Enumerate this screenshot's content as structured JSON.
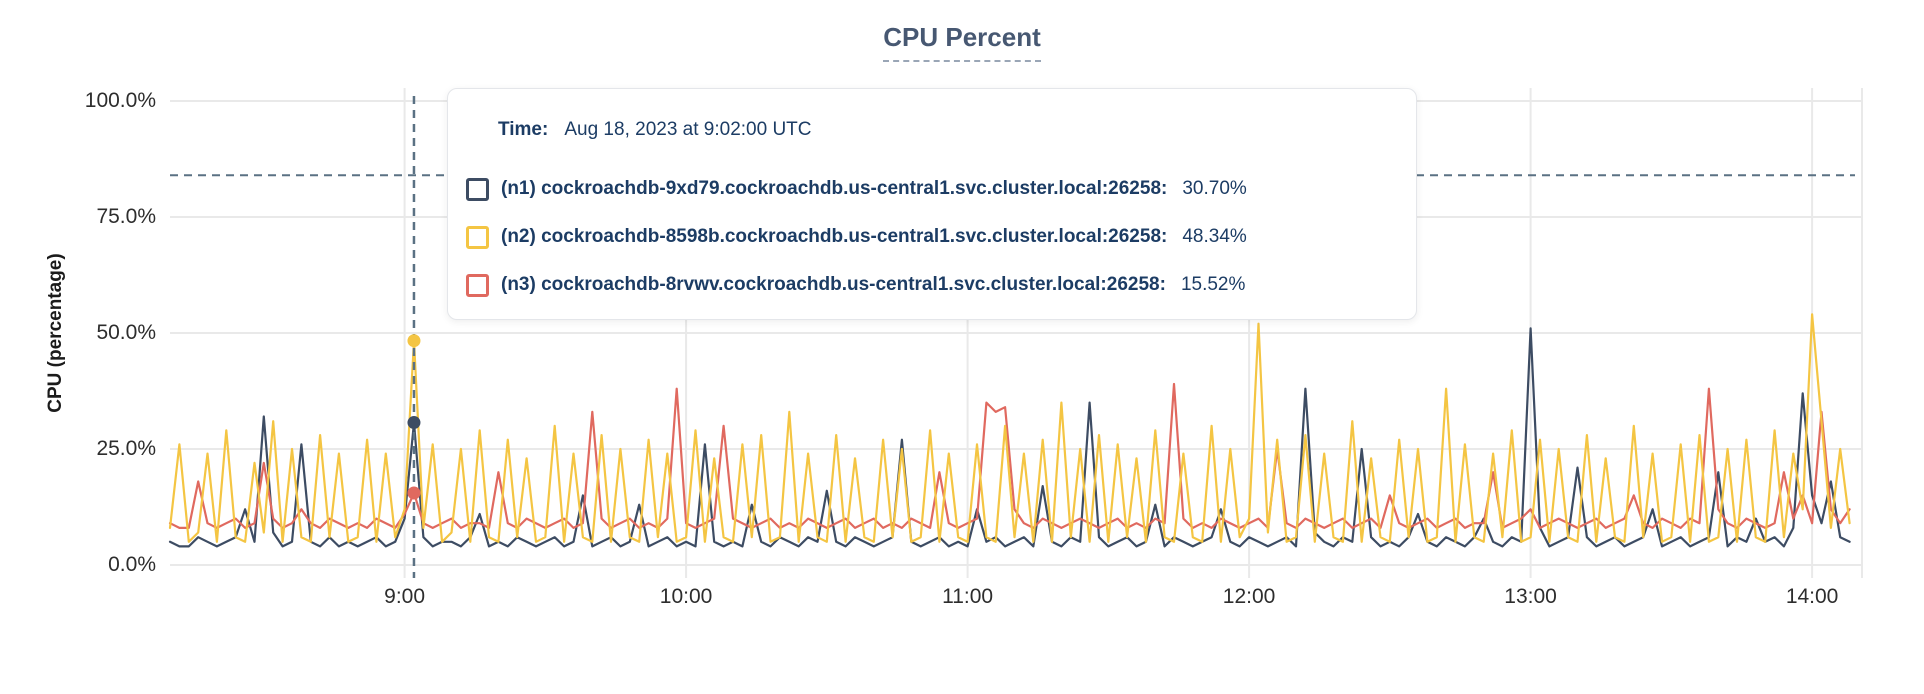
{
  "header": {
    "title": "CPU Percent"
  },
  "tooltip": {
    "time_label": "Time:",
    "time_value": "Aug 18, 2023 at 9:02:00 UTC",
    "rows": [
      {
        "series_id": "n1",
        "swatch_color": "#3d4c63",
        "name": "(n1) cockroachdb-9xd79.cockroachdb.us-central1.svc.cluster.local:26258:",
        "value": "30.70%"
      },
      {
        "series_id": "n2",
        "swatch_color": "#f4c543",
        "name": "(n2) cockroachdb-8598b.cockroachdb.us-central1.svc.cluster.local:26258:",
        "value": "48.34%"
      },
      {
        "series_id": "n3",
        "swatch_color": "#e0695f",
        "name": "(n3) cockroachdb-8rvwv.cockroachdb.us-central1.svc.cluster.local:26258:",
        "value": "15.52%"
      }
    ]
  },
  "chart_data": {
    "type": "line",
    "title": "CPU Percent",
    "xlabel": "",
    "ylabel": "CPU (percentage)",
    "ylim": [
      0,
      100
    ],
    "grid": true,
    "x_start_label": "8:10 UTC",
    "x_end_label": "14:09 UTC",
    "x_step_minutes": 2,
    "y_ticks": [
      {
        "label": "100.0%",
        "v": 100
      },
      {
        "label": "75.0%",
        "v": 75
      },
      {
        "label": "50.0%",
        "v": 50
      },
      {
        "label": "25.0%",
        "v": 25
      },
      {
        "label": "0.0%",
        "v": 0
      }
    ],
    "x_ticks": [
      {
        "label": "9:00",
        "t": 50
      },
      {
        "label": "10:00",
        "t": 110
      },
      {
        "label": "11:00",
        "t": 170
      },
      {
        "label": "12:00",
        "t": 230
      },
      {
        "label": "13:00",
        "t": 290
      },
      {
        "label": "14:00",
        "t": 350
      }
    ],
    "crosshair": {
      "time_label": "9:02",
      "t": 52,
      "cursor_percent": 84,
      "color": "#5a7183"
    },
    "highlight_dots": [
      {
        "series_id": "n2",
        "value": 48.34
      },
      {
        "series_id": "n1",
        "value": 30.7
      },
      {
        "series_id": "n3",
        "value": 15.52
      }
    ],
    "series": [
      {
        "id": "n1",
        "name": "(n1) cockroachdb-9xd79.cockroachdb.us-central1.svc.cluster.local:26258",
        "color": "#3d4c63",
        "values": [
          5,
          4,
          4,
          6,
          5,
          4,
          5,
          6,
          12,
          5,
          32,
          7,
          4,
          5,
          26,
          5,
          4,
          6,
          4,
          5,
          4,
          5,
          6,
          4,
          5,
          10,
          30.7,
          6,
          4,
          5,
          5,
          4,
          6,
          11,
          4,
          5,
          4,
          6,
          5,
          4,
          5,
          6,
          4,
          5,
          15,
          4,
          5,
          6,
          4,
          5,
          13,
          4,
          5,
          6,
          4,
          5,
          4,
          26,
          5,
          4,
          5,
          4,
          13,
          5,
          4,
          6,
          5,
          4,
          6,
          5,
          16,
          5,
          4,
          6,
          5,
          4,
          5,
          6,
          27,
          5,
          4,
          5,
          6,
          4,
          5,
          4,
          12,
          5,
          6,
          4,
          5,
          6,
          4,
          17,
          5,
          4,
          6,
          5,
          35,
          6,
          4,
          5,
          6,
          4,
          5,
          13,
          4,
          6,
          5,
          4,
          5,
          6,
          12,
          5,
          4,
          6,
          5,
          4,
          5,
          6,
          4,
          38,
          7,
          5,
          4,
          6,
          5,
          25,
          6,
          4,
          5,
          4,
          6,
          11,
          5,
          4,
          6,
          5,
          4,
          6,
          10,
          5,
          4,
          6,
          5,
          51,
          8,
          4,
          5,
          6,
          21,
          6,
          4,
          5,
          6,
          4,
          5,
          6,
          12,
          4,
          5,
          6,
          4,
          5,
          6,
          20,
          4,
          6,
          5,
          10,
          5,
          6,
          4,
          8,
          37,
          15,
          9,
          18,
          6,
          5
        ]
      },
      {
        "id": "n2",
        "name": "(n2) cockroachdb-8598b.cockroachdb.us-central1.svc.cluster.local:26258",
        "color": "#f4c543",
        "values": [
          8,
          26,
          5,
          7,
          24,
          5,
          29,
          6,
          5,
          22,
          7,
          31,
          5,
          25,
          6,
          5,
          28,
          6,
          24,
          5,
          6,
          27,
          5,
          24,
          6,
          12,
          48.3,
          8,
          26,
          5,
          7,
          25,
          5,
          29,
          6,
          5,
          27,
          6,
          23,
          5,
          6,
          30,
          5,
          24,
          6,
          5,
          28,
          5,
          25,
          6,
          5,
          27,
          6,
          24,
          5,
          6,
          29,
          5,
          23,
          6,
          5,
          26,
          6,
          28,
          5,
          6,
          33,
          5,
          24,
          6,
          5,
          28,
          5,
          23,
          6,
          5,
          27,
          6,
          25,
          5,
          6,
          29,
          5,
          24,
          6,
          5,
          26,
          6,
          5,
          30,
          6,
          24,
          5,
          27,
          5,
          35,
          6,
          25,
          5,
          28,
          5,
          26,
          6,
          23,
          5,
          29,
          6,
          5,
          24,
          6,
          5,
          30,
          5,
          25,
          6,
          10,
          52,
          7,
          27,
          5,
          6,
          28,
          5,
          24,
          6,
          5,
          31,
          5,
          23,
          6,
          5,
          27,
          6,
          25,
          5,
          6,
          38,
          5,
          26,
          6,
          5,
          24,
          6,
          29,
          5,
          6,
          27,
          5,
          25,
          6,
          5,
          28,
          5,
          23,
          6,
          5,
          30,
          6,
          24,
          5,
          6,
          26,
          5,
          28,
          5,
          6,
          25,
          5,
          27,
          6,
          5,
          29,
          6,
          24,
          12,
          54,
          31,
          8,
          25,
          9
        ]
      },
      {
        "id": "n3",
        "name": "(n3) cockroachdb-8rvwv.cockroachdb.us-central1.svc.cluster.local:26258",
        "color": "#e0695f",
        "values": [
          9,
          8,
          8,
          18,
          9,
          8,
          9,
          10,
          8,
          9,
          22,
          10,
          8,
          9,
          12,
          9,
          8,
          10,
          9,
          8,
          9,
          8,
          10,
          9,
          8,
          11,
          15.5,
          9,
          8,
          9,
          10,
          8,
          9,
          9,
          8,
          20,
          9,
          8,
          10,
          9,
          8,
          9,
          10,
          8,
          9,
          33,
          10,
          8,
          9,
          10,
          8,
          9,
          8,
          10,
          38,
          9,
          8,
          9,
          10,
          30,
          10,
          9,
          8,
          9,
          10,
          8,
          9,
          8,
          10,
          9,
          8,
          9,
          10,
          8,
          9,
          10,
          8,
          9,
          8,
          10,
          9,
          8,
          20,
          9,
          8,
          9,
          10,
          35,
          33,
          34,
          12,
          9,
          8,
          10,
          9,
          8,
          9,
          10,
          9,
          8,
          9,
          10,
          8,
          9,
          8,
          10,
          9,
          39,
          10,
          8,
          9,
          8,
          10,
          9,
          8,
          9,
          10,
          8,
          25,
          9,
          8,
          10,
          9,
          8,
          9,
          10,
          8,
          9,
          10,
          8,
          15,
          9,
          8,
          9,
          10,
          8,
          9,
          10,
          8,
          9,
          9,
          20,
          8,
          9,
          10,
          12,
          8,
          9,
          10,
          9,
          8,
          9,
          10,
          8,
          9,
          10,
          15,
          9,
          8,
          10,
          9,
          8,
          10,
          9,
          38,
          12,
          9,
          8,
          10,
          9,
          8,
          9,
          20,
          10,
          15,
          9,
          33,
          12,
          9,
          12
        ]
      }
    ]
  },
  "colors": {
    "grid": "#e9e9e9",
    "title": "#475872",
    "tooltip_text": "#1c3c64",
    "axis_text": "#2d2d2d"
  }
}
